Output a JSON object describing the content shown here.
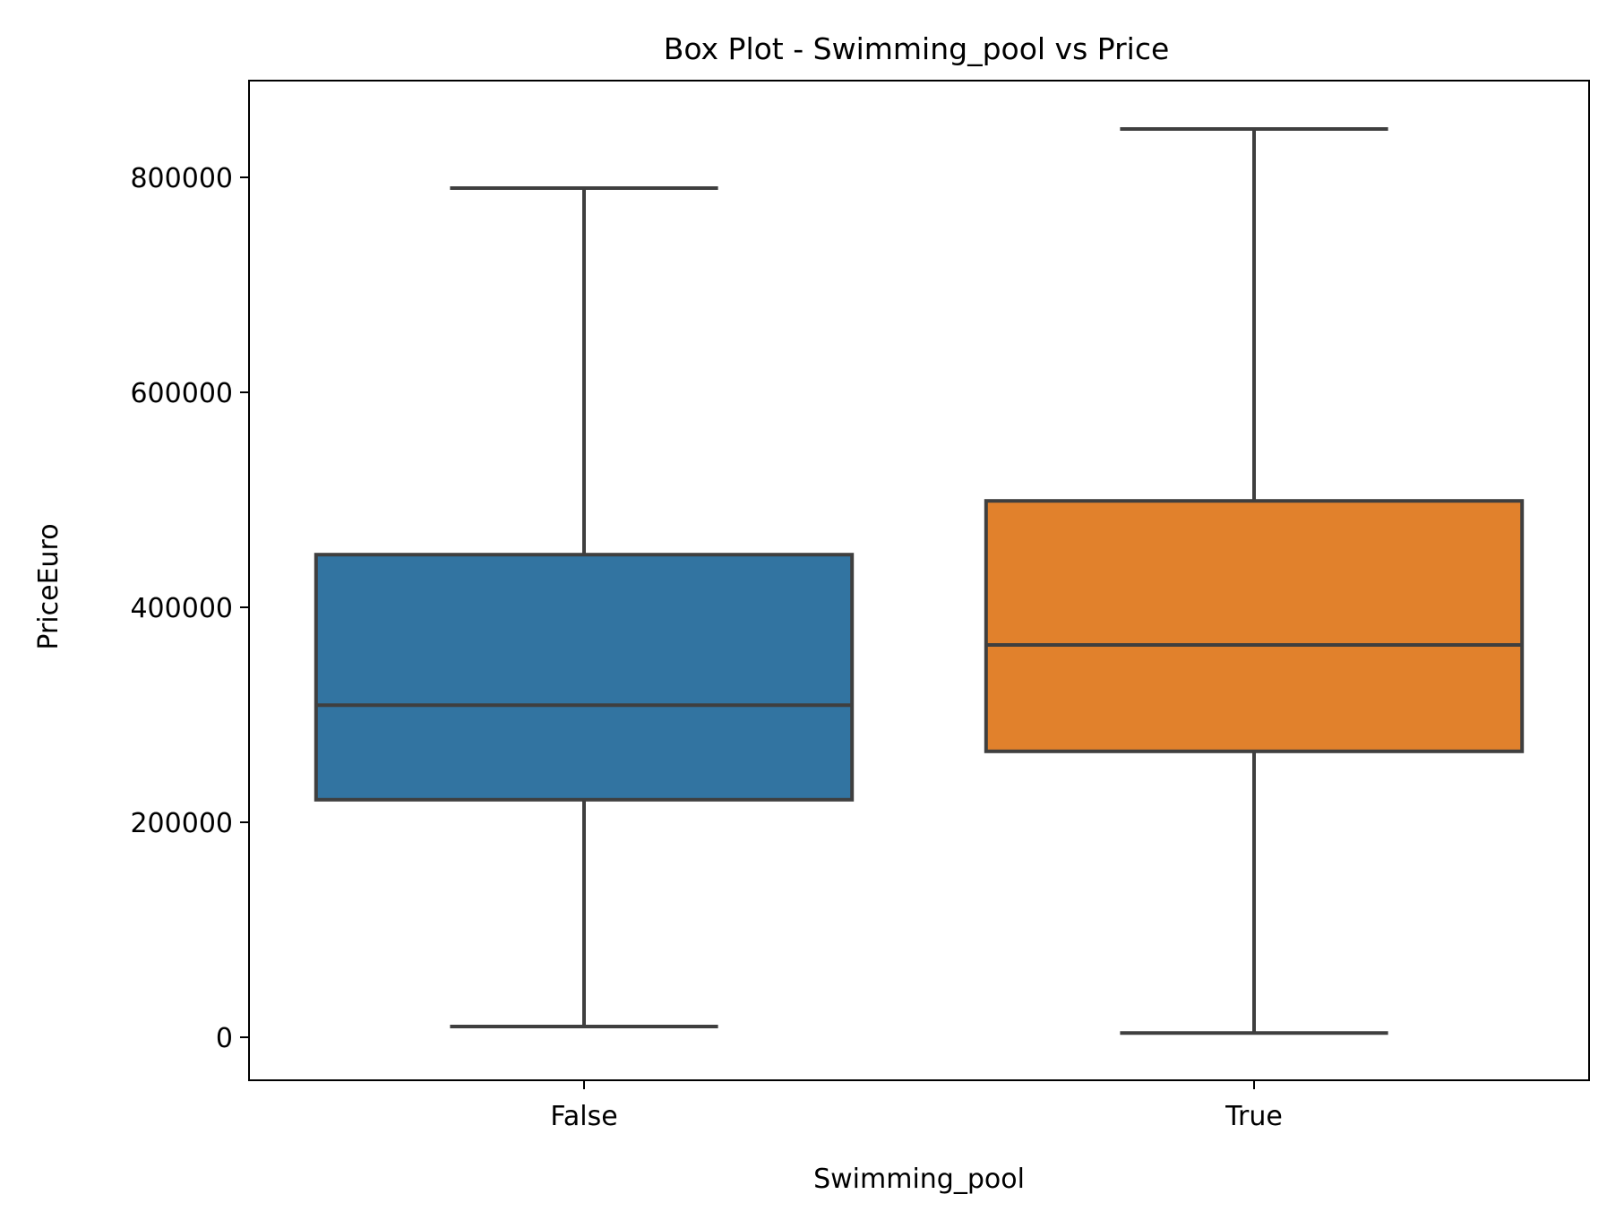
{
  "chart_data": {
    "type": "box",
    "title": "Box Plot - Swimming_pool vs Price",
    "xlabel": "Swimming_pool",
    "ylabel": "PriceEuro",
    "ylim": [
      -40000,
      890000
    ],
    "yticks": [
      0,
      200000,
      400000,
      600000,
      800000
    ],
    "ytick_labels": [
      "0",
      "200000",
      "400000",
      "600000",
      "800000"
    ],
    "grid": false,
    "categories": [
      "False",
      "True"
    ],
    "boxes": [
      {
        "category": "False",
        "whisker_low": 10000,
        "q1": 221000,
        "median": 309000,
        "q3": 449000,
        "whisker_high": 790000,
        "color": "#3274a1"
      },
      {
        "category": "True",
        "whisker_low": 4000,
        "q1": 266000,
        "median": 365000,
        "q3": 499000,
        "whisker_high": 845000,
        "color": "#e1812c"
      }
    ],
    "line_color": "#3f3f3f"
  }
}
